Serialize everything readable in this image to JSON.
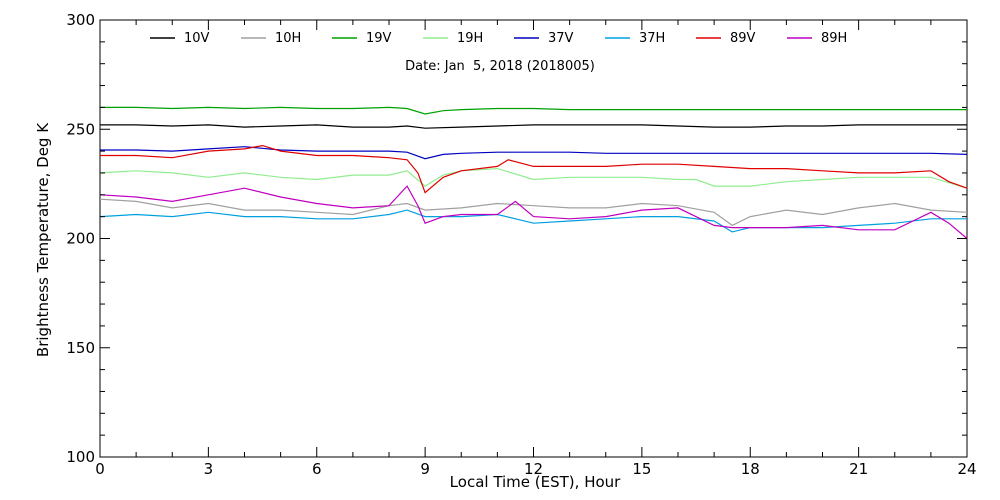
{
  "chart_data": {
    "type": "line",
    "title": "",
    "subtitle": "Date: Jan  5, 2018 (2018005)",
    "xlabel": "Local Time (EST), Hour",
    "ylabel": "Brightness Temperature, Deg K",
    "xlim": [
      0,
      24
    ],
    "ylim": [
      100,
      300
    ],
    "xticks": [
      0,
      3,
      6,
      9,
      12,
      15,
      18,
      21,
      24
    ],
    "yticks": [
      100,
      150,
      200,
      250,
      300
    ],
    "x_tick_labels": [
      "0",
      "3",
      "6",
      "9",
      "12",
      "15",
      "18",
      "21",
      "24"
    ],
    "y_tick_labels": [
      "100",
      "150",
      "200",
      "250",
      "300"
    ],
    "grid": false,
    "legend_position": "top",
    "series": [
      {
        "name": "10V",
        "color": "#000000",
        "x": [
          0,
          1,
          2,
          3,
          4,
          5,
          6,
          7,
          8,
          8.5,
          9,
          10,
          11,
          12,
          13,
          14,
          15,
          16,
          17,
          18,
          19,
          20,
          21,
          22,
          23,
          24
        ],
        "y": [
          252,
          252,
          251.5,
          252,
          251,
          251.5,
          252,
          251,
          251,
          251.5,
          250.5,
          251,
          251.5,
          252,
          252,
          252,
          252,
          251.5,
          251,
          251,
          251.5,
          251.5,
          252,
          252,
          252,
          252
        ]
      },
      {
        "name": "10H",
        "color": "#a0a0a0",
        "x": [
          0,
          1,
          2,
          3,
          4,
          5,
          6,
          7,
          8,
          8.5,
          9,
          10,
          11,
          12,
          13,
          14,
          15,
          16,
          17,
          17.5,
          18,
          19,
          20,
          21,
          22,
          23,
          24
        ],
        "y": [
          218,
          217,
          214,
          216,
          213,
          213,
          212,
          211,
          215,
          216,
          213,
          214,
          216,
          215,
          214,
          214,
          216,
          215,
          212,
          206,
          210,
          213,
          211,
          214,
          216,
          213,
          212
        ]
      },
      {
        "name": "19V",
        "color": "#00a000",
        "x": [
          0,
          1,
          2,
          3,
          4,
          5,
          6,
          7,
          8,
          8.5,
          9,
          9.5,
          10,
          11,
          12,
          13,
          14,
          15,
          16,
          17,
          18,
          19,
          20,
          21,
          22,
          23,
          24
        ],
        "y": [
          260,
          260,
          259.5,
          260,
          259.5,
          260,
          259.5,
          259.5,
          260,
          259.5,
          257,
          258.5,
          259,
          259.5,
          259.5,
          259,
          259,
          259,
          259,
          259,
          259,
          259,
          259,
          259,
          259,
          259,
          259
        ]
      },
      {
        "name": "19H",
        "color": "#90ee90",
        "x": [
          0,
          1,
          2,
          3,
          4,
          5,
          6,
          7,
          8,
          8.5,
          9,
          9.5,
          10,
          11,
          12,
          13,
          14,
          15,
          16,
          16.5,
          17,
          18,
          19,
          20,
          21,
          22,
          23,
          24
        ],
        "y": [
          230,
          231,
          230,
          228,
          230,
          228,
          227,
          229,
          229,
          231,
          224,
          229,
          231,
          232,
          227,
          228,
          228,
          228,
          227,
          227,
          224,
          224,
          226,
          227,
          228,
          228,
          228,
          223
        ]
      },
      {
        "name": "37V",
        "color": "#0000c0",
        "x": [
          0,
          1,
          2,
          3,
          4,
          5,
          6,
          7,
          8,
          8.5,
          9,
          9.5,
          10,
          11,
          12,
          13,
          14,
          15,
          16,
          17,
          18,
          19,
          20,
          21,
          22,
          23,
          24
        ],
        "y": [
          240.5,
          240.5,
          240,
          241,
          242,
          240.5,
          240,
          240,
          240,
          239.5,
          236.5,
          238.5,
          239,
          239.5,
          239.5,
          239.5,
          239,
          239,
          239,
          239,
          239,
          239,
          239,
          239,
          239,
          239,
          238.5
        ]
      },
      {
        "name": "37H",
        "color": "#00a0e0",
        "x": [
          0,
          1,
          2,
          3,
          4,
          5,
          6,
          7,
          8,
          8.5,
          9,
          10,
          11,
          12,
          13,
          14,
          15,
          16,
          17,
          17.5,
          18,
          19,
          20,
          21,
          22,
          23,
          24
        ],
        "y": [
          210,
          211,
          210,
          212,
          210,
          210,
          209,
          209,
          211,
          213,
          210,
          210,
          211,
          207,
          208,
          209,
          210,
          210,
          208,
          203,
          205,
          205,
          205,
          206,
          207,
          209,
          209
        ]
      },
      {
        "name": "89V",
        "color": "#e00000",
        "x": [
          0,
          1,
          2,
          3,
          4,
          4.5,
          5,
          6,
          7,
          8,
          8.5,
          8.8,
          9,
          9.5,
          10,
          11,
          11.3,
          12,
          13,
          14,
          15,
          16,
          17,
          18,
          19,
          20,
          21,
          22,
          23,
          23.5,
          24
        ],
        "y": [
          238,
          238,
          237,
          240,
          241,
          242.5,
          240,
          238,
          238,
          237,
          236,
          230,
          221,
          228,
          231,
          233,
          236,
          233,
          233,
          233,
          234,
          234,
          233,
          232,
          232,
          231,
          230,
          230,
          231,
          226,
          223
        ]
      },
      {
        "name": "89H",
        "color": "#c000c0",
        "x": [
          0,
          1,
          2,
          3,
          4,
          5,
          6,
          7,
          8,
          8.5,
          8.8,
          9,
          9.5,
          10,
          11,
          11.5,
          12,
          13,
          14,
          15,
          16,
          17,
          17.5,
          18,
          19,
          20,
          21,
          22,
          23,
          23.5,
          24
        ],
        "y": [
          220,
          219,
          217,
          220,
          223,
          219,
          216,
          214,
          215,
          224,
          215,
          207,
          210,
          211,
          211,
          217,
          210,
          209,
          210,
          213,
          214,
          206,
          205,
          205,
          205,
          206,
          204,
          204,
          212,
          207,
          200
        ]
      }
    ]
  }
}
